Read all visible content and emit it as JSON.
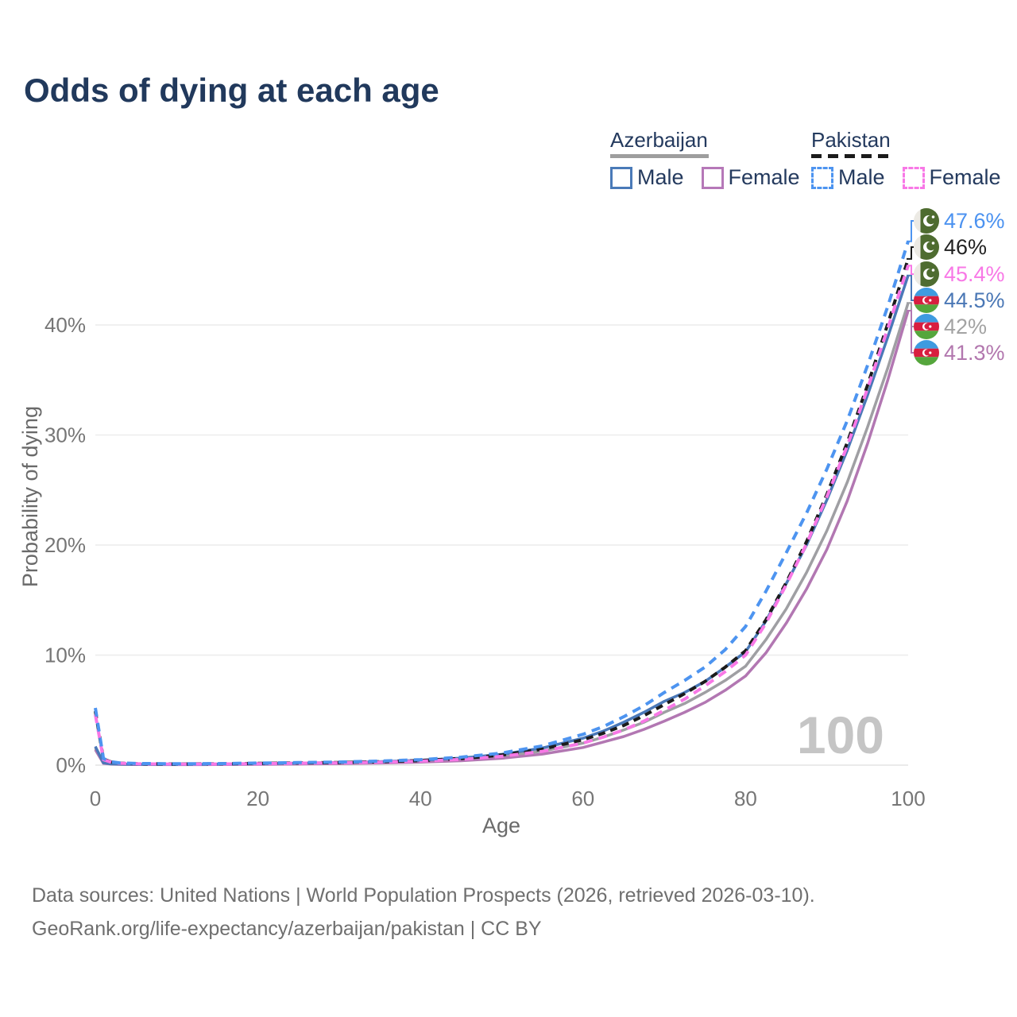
{
  "title": "Odds of dying at each age",
  "legend": {
    "groups": [
      {
        "label": "Azerbaijan",
        "line_style": "solid",
        "underline_color": "#9e9e9e",
        "items": [
          {
            "label": "Male",
            "color": "#4a7ab8"
          },
          {
            "label": "Female",
            "color": "#b678b8"
          }
        ]
      },
      {
        "label": "Pakistan",
        "line_style": "dashed",
        "underline_color": "#1b1b1b",
        "items": [
          {
            "label": "Male",
            "color": "#4d94f0"
          },
          {
            "label": "Female",
            "color": "#f878e6"
          }
        ]
      }
    ]
  },
  "chart_data": {
    "type": "line",
    "title": "Odds of dying at each age",
    "xlabel": "Age",
    "ylabel": "Probability of dying",
    "xlim": [
      0,
      100
    ],
    "ylim": [
      0,
      48
    ],
    "x_ticks": [
      0,
      20,
      40,
      60,
      80,
      100
    ],
    "y_ticks": [
      {
        "value": 0,
        "label": "0%"
      },
      {
        "value": 10,
        "label": "10%"
      },
      {
        "value": 20,
        "label": "20%"
      },
      {
        "value": 30,
        "label": "30%"
      },
      {
        "value": 40,
        "label": "40%"
      }
    ],
    "grid": "horizontal",
    "legend_position": "top-right",
    "watermark": "100",
    "series": [
      {
        "name": "Azerbaijan",
        "country": "Azerbaijan",
        "sex": "both",
        "flag": "azerbaijan",
        "line": "solid",
        "color": "#9f9fa3",
        "label_color": "#a3a3a3",
        "end_label": "42%",
        "end_value": 42,
        "label_row": 4,
        "points": [
          [
            0,
            1.55
          ],
          [
            1,
            0.18
          ],
          [
            2,
            0.1
          ],
          [
            3,
            0.08
          ],
          [
            5,
            0.06
          ],
          [
            10,
            0.05
          ],
          [
            15,
            0.07
          ],
          [
            20,
            0.1
          ],
          [
            25,
            0.14
          ],
          [
            30,
            0.19
          ],
          [
            35,
            0.26
          ],
          [
            40,
            0.36
          ],
          [
            45,
            0.52
          ],
          [
            50,
            0.8
          ],
          [
            55,
            1.27
          ],
          [
            60,
            2.0
          ],
          [
            62.5,
            2.55
          ],
          [
            65,
            3.2
          ],
          [
            67.5,
            3.9
          ],
          [
            70,
            4.8
          ],
          [
            72.5,
            5.6
          ],
          [
            75,
            6.6
          ],
          [
            77.5,
            7.7
          ],
          [
            80,
            9.0
          ],
          [
            82.5,
            11.4
          ],
          [
            85,
            14.2
          ],
          [
            87.5,
            17.5
          ],
          [
            90,
            21.3
          ],
          [
            92.5,
            25.7
          ],
          [
            95,
            30.7
          ],
          [
            97.5,
            36.1
          ],
          [
            100,
            42.0
          ]
        ]
      },
      {
        "name": "Azerbaijan Female",
        "country": "Azerbaijan",
        "sex": "female",
        "flag": "azerbaijan",
        "line": "solid",
        "color": "#b277b2",
        "label_color": "#b277ae",
        "end_label": "41.3%",
        "end_value": 41.3,
        "label_row": 5,
        "points": [
          [
            0,
            1.4
          ],
          [
            1,
            0.16
          ],
          [
            2,
            0.09
          ],
          [
            3,
            0.07
          ],
          [
            5,
            0.05
          ],
          [
            10,
            0.04
          ],
          [
            15,
            0.05
          ],
          [
            20,
            0.07
          ],
          [
            25,
            0.1
          ],
          [
            30,
            0.14
          ],
          [
            35,
            0.19
          ],
          [
            40,
            0.27
          ],
          [
            45,
            0.4
          ],
          [
            50,
            0.62
          ],
          [
            55,
            1.0
          ],
          [
            60,
            1.6
          ],
          [
            62.5,
            2.1
          ],
          [
            65,
            2.6
          ],
          [
            67.5,
            3.25
          ],
          [
            70,
            4.0
          ],
          [
            72.5,
            4.8
          ],
          [
            75,
            5.7
          ],
          [
            77.5,
            6.8
          ],
          [
            80,
            8.1
          ],
          [
            82.5,
            10.2
          ],
          [
            85,
            12.9
          ],
          [
            87.5,
            16.0
          ],
          [
            90,
            19.6
          ],
          [
            92.5,
            24.0
          ],
          [
            95,
            29.2
          ],
          [
            97.5,
            35.0
          ],
          [
            100,
            41.3
          ]
        ]
      },
      {
        "name": "Azerbaijan Male",
        "country": "Azerbaijan",
        "sex": "male",
        "flag": "azerbaijan",
        "line": "solid",
        "color": "#4a78b8",
        "label_color": "#4a77b5",
        "end_label": "44.5%",
        "end_value": 44.5,
        "label_row": 3,
        "points": [
          [
            0,
            1.7
          ],
          [
            1,
            0.2
          ],
          [
            2,
            0.11
          ],
          [
            3,
            0.09
          ],
          [
            5,
            0.07
          ],
          [
            10,
            0.06
          ],
          [
            15,
            0.09
          ],
          [
            20,
            0.13
          ],
          [
            25,
            0.18
          ],
          [
            30,
            0.24
          ],
          [
            35,
            0.32
          ],
          [
            40,
            0.44
          ],
          [
            45,
            0.64
          ],
          [
            50,
            0.98
          ],
          [
            55,
            1.55
          ],
          [
            60,
            2.45
          ],
          [
            62.5,
            3.1
          ],
          [
            65,
            3.9
          ],
          [
            67.5,
            4.8
          ],
          [
            70,
            5.8
          ],
          [
            72.5,
            6.6
          ],
          [
            75,
            7.6
          ],
          [
            77.5,
            8.9
          ],
          [
            80,
            10.3
          ],
          [
            82.5,
            13.1
          ],
          [
            85,
            16.5
          ],
          [
            87.5,
            20.0
          ],
          [
            90,
            24.1
          ],
          [
            92.5,
            28.6
          ],
          [
            95,
            33.6
          ],
          [
            97.5,
            38.9
          ],
          [
            100,
            44.5
          ]
        ]
      },
      {
        "name": "Pakistan",
        "country": "Pakistan",
        "sex": "both",
        "flag": "pakistan",
        "line": "dashed",
        "color": "#1b1b1b",
        "label_color": "#222222",
        "end_label": "46%",
        "end_value": 46,
        "label_row": 1,
        "points": [
          [
            0,
            4.9
          ],
          [
            1,
            0.55
          ],
          [
            2,
            0.27
          ],
          [
            3,
            0.18
          ],
          [
            5,
            0.13
          ],
          [
            10,
            0.1
          ],
          [
            15,
            0.12
          ],
          [
            20,
            0.16
          ],
          [
            25,
            0.2
          ],
          [
            30,
            0.24
          ],
          [
            35,
            0.31
          ],
          [
            40,
            0.42
          ],
          [
            45,
            0.6
          ],
          [
            50,
            0.92
          ],
          [
            55,
            1.45
          ],
          [
            60,
            2.3
          ],
          [
            62.5,
            2.9
          ],
          [
            65,
            3.6
          ],
          [
            67.5,
            4.5
          ],
          [
            70,
            5.5
          ],
          [
            72.5,
            6.5
          ],
          [
            75,
            7.6
          ],
          [
            77.5,
            8.9
          ],
          [
            80,
            10.4
          ],
          [
            82.5,
            13.2
          ],
          [
            85,
            16.6
          ],
          [
            87.5,
            20.3
          ],
          [
            90,
            24.6
          ],
          [
            92.5,
            29.3
          ],
          [
            95,
            34.5
          ],
          [
            97.5,
            40.1
          ],
          [
            100,
            46.0
          ]
        ]
      },
      {
        "name": "Pakistan Female",
        "country": "Pakistan",
        "sex": "female",
        "flag": "pakistan",
        "line": "dashed",
        "color": "#f878e6",
        "label_color": "#f878e6",
        "end_label": "45.4%",
        "end_value": 45.4,
        "label_row": 2,
        "points": [
          [
            0,
            4.6
          ],
          [
            1,
            0.5
          ],
          [
            2,
            0.25
          ],
          [
            3,
            0.17
          ],
          [
            5,
            0.12
          ],
          [
            10,
            0.09
          ],
          [
            15,
            0.1
          ],
          [
            20,
            0.13
          ],
          [
            25,
            0.17
          ],
          [
            30,
            0.21
          ],
          [
            35,
            0.27
          ],
          [
            40,
            0.36
          ],
          [
            45,
            0.52
          ],
          [
            50,
            0.8
          ],
          [
            55,
            1.25
          ],
          [
            60,
            2.0
          ],
          [
            62.5,
            2.55
          ],
          [
            65,
            3.2
          ],
          [
            67.5,
            4.0
          ],
          [
            70,
            5.0
          ],
          [
            72.5,
            6.0
          ],
          [
            75,
            7.2
          ],
          [
            77.5,
            8.5
          ],
          [
            80,
            10.0
          ],
          [
            82.5,
            12.9
          ],
          [
            85,
            16.4
          ],
          [
            87.5,
            20.1
          ],
          [
            90,
            24.4
          ],
          [
            92.5,
            29.0
          ],
          [
            95,
            34.2
          ],
          [
            97.5,
            39.7
          ],
          [
            100,
            45.4
          ]
        ]
      },
      {
        "name": "Pakistan Male",
        "country": "Pakistan",
        "sex": "male",
        "flag": "pakistan",
        "line": "dashed",
        "color": "#4d94f0",
        "label_color": "#4b92f0",
        "end_label": "47.6%",
        "end_value": 47.6,
        "label_row": 0,
        "points": [
          [
            0,
            5.2
          ],
          [
            1,
            0.6
          ],
          [
            2,
            0.3
          ],
          [
            3,
            0.2
          ],
          [
            5,
            0.15
          ],
          [
            10,
            0.12
          ],
          [
            15,
            0.14
          ],
          [
            20,
            0.19
          ],
          [
            25,
            0.23
          ],
          [
            30,
            0.28
          ],
          [
            35,
            0.37
          ],
          [
            40,
            0.5
          ],
          [
            45,
            0.72
          ],
          [
            50,
            1.1
          ],
          [
            55,
            1.75
          ],
          [
            60,
            2.8
          ],
          [
            62.5,
            3.5
          ],
          [
            65,
            4.4
          ],
          [
            67.5,
            5.4
          ],
          [
            70,
            6.6
          ],
          [
            72.5,
            7.7
          ],
          [
            75,
            8.9
          ],
          [
            77.5,
            10.5
          ],
          [
            80,
            12.6
          ],
          [
            82.5,
            15.8
          ],
          [
            85,
            19.3
          ],
          [
            87.5,
            22.9
          ],
          [
            90,
            26.9
          ],
          [
            92.5,
            31.3
          ],
          [
            95,
            36.3
          ],
          [
            97.5,
            41.7
          ],
          [
            100,
            47.6
          ]
        ]
      }
    ]
  },
  "flags": {
    "pakistan": {
      "field": "#4e6c30",
      "stripe": "#eceae4"
    },
    "azerbaijan": {
      "blue": "#3e9be0",
      "red": "#d81e3f",
      "green": "#55a63c"
    }
  },
  "footer": {
    "line1": "Data sources: United Nations | World Population Prospects (2026, retrieved 2026-03-10).",
    "line2": "GeoRank.org/life-expectancy/azerbaijan/pakistan | CC BY"
  }
}
